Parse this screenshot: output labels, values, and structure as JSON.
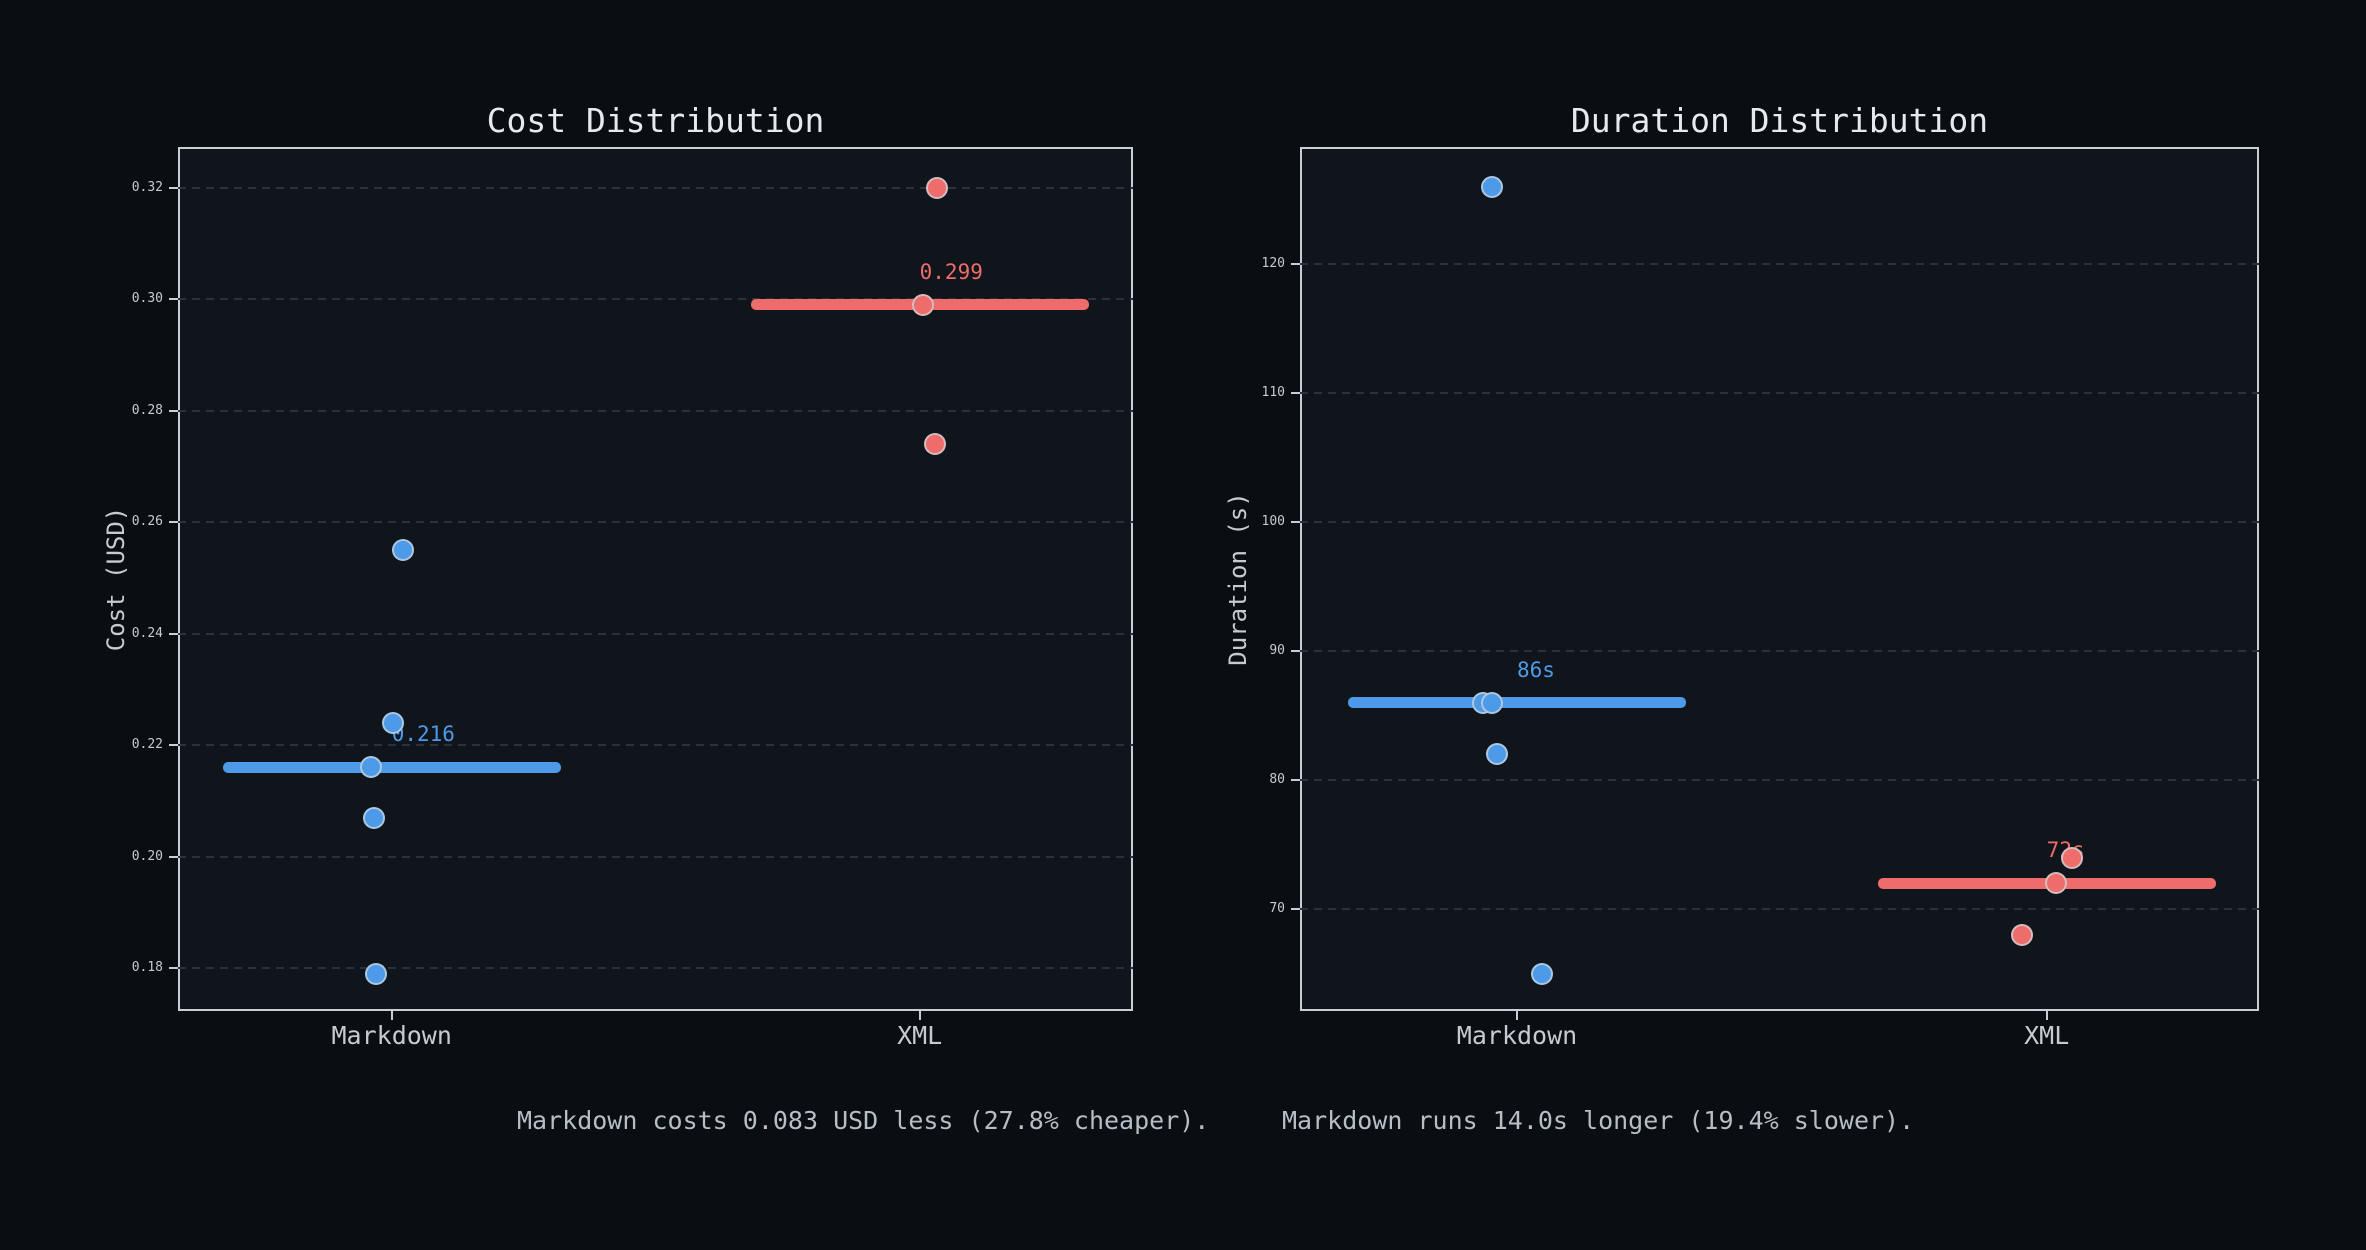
{
  "figure": {
    "background": "#0a0d12",
    "axes_background": "#10141b",
    "spine_color": "#c7ced5",
    "grid_color": "#2c323b",
    "text_color": "#c4cbd2",
    "title_color": "#e4eaef",
    "annotation_color": "#b6bec6",
    "point_edge_color": "rgba(206,214,222,0.75)",
    "blue": "#4d9be8",
    "red": "#ee6c69"
  },
  "chart_data": [
    {
      "type": "scatter",
      "title": "Cost Distribution",
      "ylabel": "Cost (USD)",
      "xlabel": "",
      "ylim": [
        0.1723,
        0.3273
      ],
      "grid": "horizontal-dashed",
      "legend": "none",
      "categories": [
        "Markdown",
        "XML"
      ],
      "yticks": [
        {
          "v": 0.18,
          "label": "0.18"
        },
        {
          "v": 0.2,
          "label": "0.20"
        },
        {
          "v": 0.22,
          "label": "0.22"
        },
        {
          "v": 0.24,
          "label": "0.24"
        },
        {
          "v": 0.26,
          "label": "0.26"
        },
        {
          "v": 0.28,
          "label": "0.28"
        },
        {
          "v": 0.3,
          "label": "0.30"
        },
        {
          "v": 0.32,
          "label": "0.32"
        }
      ],
      "series": [
        {
          "name": "Markdown",
          "x_frac": 0.2238,
          "color": "#4d9be8",
          "mean": 0.216,
          "mean_label": "0.216",
          "points": [
            {
              "v": 0.255,
              "dx": 11
            },
            {
              "v": 0.224,
              "dx": 1
            },
            {
              "v": 0.216,
              "dx": -21
            },
            {
              "v": 0.207,
              "dx": -18
            },
            {
              "v": 0.179,
              "dx": -16
            }
          ]
        },
        {
          "name": "XML",
          "x_frac": 0.7766,
          "color": "#ee6c69",
          "mean": 0.299,
          "mean_label": "0.299",
          "points": [
            {
              "v": 0.32,
              "dx": 17
            },
            {
              "v": 0.299,
              "dx": 3
            },
            {
              "v": 0.274,
              "dx": 15
            }
          ]
        }
      ]
    },
    {
      "type": "scatter",
      "title": "Duration Distribution",
      "ylabel": "Duration (s)",
      "xlabel": "",
      "ylim": [
        62.1,
        129.1
      ],
      "grid": "horizontal-dashed",
      "legend": "none",
      "categories": [
        "Markdown",
        "XML"
      ],
      "yticks": [
        {
          "v": 70,
          "label": "70"
        },
        {
          "v": 80,
          "label": "80"
        },
        {
          "v": 90,
          "label": "90"
        },
        {
          "v": 100,
          "label": "100"
        },
        {
          "v": 110,
          "label": "110"
        },
        {
          "v": 120,
          "label": "120"
        }
      ],
      "series": [
        {
          "name": "Markdown",
          "x_frac": 0.2263,
          "color": "#4d9be8",
          "mean": 86,
          "mean_label": "86s",
          "points": [
            {
              "v": 126,
              "dx": -25
            },
            {
              "v": 86,
              "dx": -34
            },
            {
              "v": 86,
              "dx": -25
            },
            {
              "v": 82,
              "dx": -20
            },
            {
              "v": 65,
              "dx": 25
            }
          ]
        },
        {
          "name": "XML",
          "x_frac": 0.7786,
          "color": "#ee6c69",
          "mean": 72,
          "mean_label": "72s",
          "points": [
            {
              "v": 74,
              "dx": 25
            },
            {
              "v": 72,
              "dx": 9
            },
            {
              "v": 68,
              "dx": -25
            }
          ]
        }
      ]
    }
  ],
  "annotations": [
    {
      "text": "Markdown costs 0.083 USD less (27.8% cheaper)."
    },
    {
      "text": "Markdown runs 14.0s longer (19.4% slower)."
    }
  ]
}
